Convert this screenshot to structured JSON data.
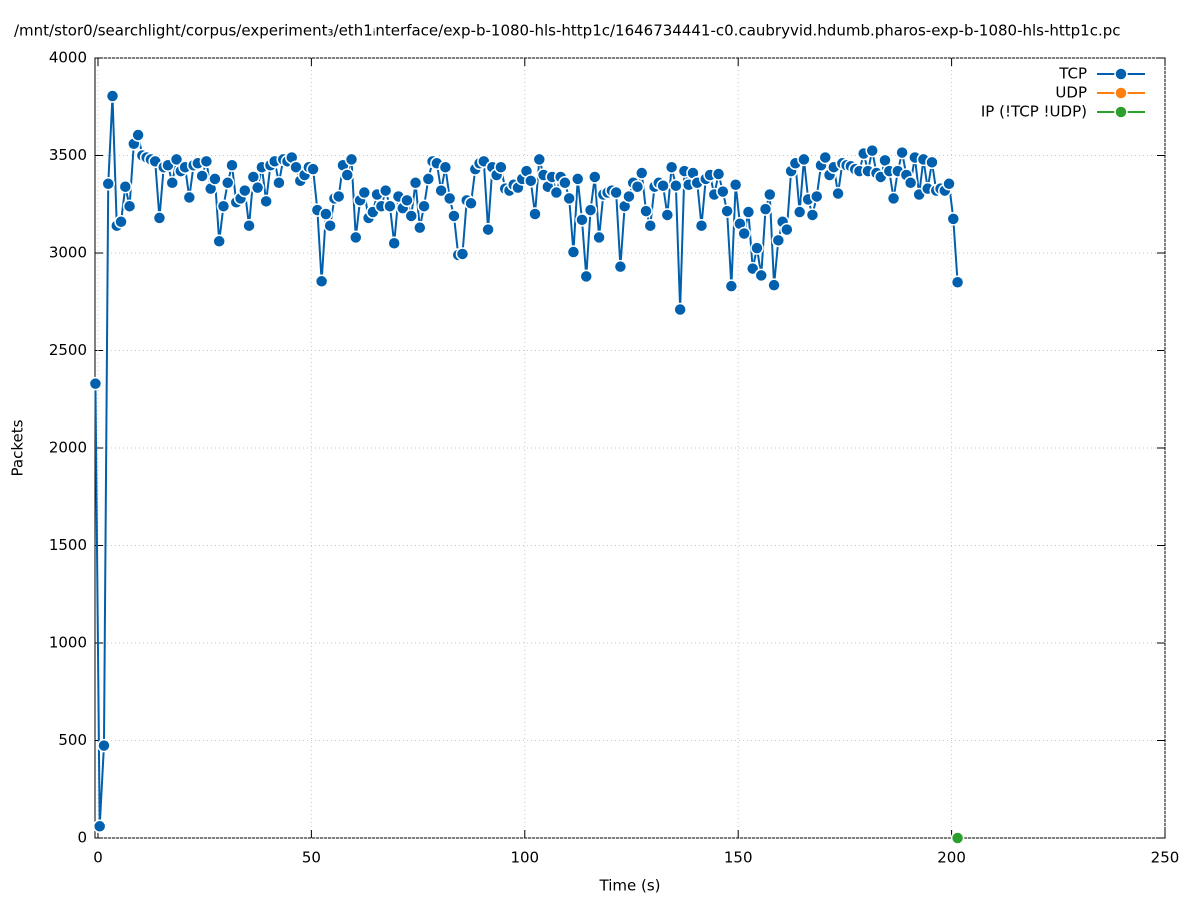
{
  "chart_data": {
    "type": "line",
    "title": "/mnt/stor0/searchlight/corpus/experiment₃/eth1ᵢnterface/exp-b-1080-hls-http1c/1646734441-c0.caubryvid.hdumb.pharos-exp-b-1080-hls-http1c.pc",
    "x_label": "Time (s)",
    "y_label": "Packets",
    "xlim": [
      -0.7,
      250
    ],
    "ylim": [
      0,
      4000
    ],
    "xticks": [
      0,
      50,
      100,
      150,
      200,
      250
    ],
    "yticks": [
      0,
      500,
      1000,
      1500,
      2000,
      2500,
      3000,
      3500,
      4000
    ],
    "grid": true,
    "legend": "top-right",
    "series": [
      {
        "name": "TCP",
        "color": "#0060ad",
        "x": [
          -0.6,
          0.4,
          1.4,
          2.4,
          3.4,
          4.4,
          5.4,
          6.4,
          7.4,
          8.4,
          9.4,
          10.4,
          11.4,
          12.4,
          13.4,
          14.4,
          15.4,
          16.4,
          17.4,
          18.4,
          19.4,
          20.4,
          21.4,
          22.4,
          23.4,
          24.4,
          25.4,
          26.4,
          27.4,
          28.4,
          29.4,
          30.4,
          31.4,
          32.4,
          33.4,
          34.4,
          35.4,
          36.4,
          37.4,
          38.4,
          39.4,
          40.4,
          41.4,
          42.4,
          43.4,
          44.4,
          45.4,
          46.4,
          47.4,
          48.4,
          49.4,
          50.4,
          51.4,
          52.4,
          53.4,
          54.4,
          55.4,
          56.4,
          57.4,
          58.4,
          59.4,
          60.4,
          61.4,
          62.4,
          63.4,
          64.4,
          65.4,
          66.4,
          67.4,
          68.4,
          69.4,
          70.4,
          71.4,
          72.4,
          73.4,
          74.4,
          75.4,
          76.4,
          77.4,
          78.4,
          79.4,
          80.4,
          81.4,
          82.4,
          83.4,
          84.4,
          85.4,
          86.4,
          87.4,
          88.4,
          89.4,
          90.4,
          91.4,
          92.4,
          93.4,
          94.4,
          95.4,
          96.4,
          97.4,
          98.4,
          99.4,
          100.4,
          101.4,
          102.4,
          103.4,
          104.4,
          105.4,
          106.4,
          107.4,
          108.4,
          109.4,
          110.4,
          111.4,
          112.4,
          113.4,
          114.4,
          115.4,
          116.4,
          117.4,
          118.4,
          119.4,
          120.4,
          121.4,
          122.4,
          123.4,
          124.4,
          125.4,
          126.4,
          127.4,
          128.4,
          129.4,
          130.4,
          131.4,
          132.4,
          133.4,
          134.4,
          135.4,
          136.4,
          137.4,
          138.4,
          139.4,
          140.4,
          141.4,
          142.4,
          143.4,
          144.4,
          145.4,
          146.4,
          147.4,
          148.4,
          149.4,
          150.4,
          151.4,
          152.4,
          153.4,
          154.4,
          155.4,
          156.4,
          157.4,
          158.4,
          159.4,
          160.4,
          161.4,
          162.4,
          163.4,
          164.4,
          165.4,
          166.4,
          167.4,
          168.4,
          169.4,
          170.4,
          171.4,
          172.4,
          173.4,
          174.4,
          175.4,
          176.4,
          177.4,
          178.4,
          179.4,
          180.4,
          181.4,
          182.4,
          183.4,
          184.4,
          185.4,
          186.4,
          187.4,
          188.4,
          189.4,
          190.4,
          191.4,
          192.4,
          193.4,
          194.4,
          195.4,
          196.4,
          197.4,
          198.4,
          199.4,
          200.4,
          201.4
        ],
        "values": [
          2330,
          60,
          474,
          3355,
          3805,
          3140,
          3160,
          3340,
          3240,
          3560,
          3605,
          3500,
          3490,
          3480,
          3470,
          3180,
          3440,
          3450,
          3360,
          3480,
          3420,
          3440,
          3285,
          3450,
          3460,
          3395,
          3470,
          3330,
          3380,
          3060,
          3240,
          3360,
          3450,
          3260,
          3280,
          3320,
          3140,
          3390,
          3335,
          3440,
          3265,
          3450,
          3470,
          3360,
          3480,
          3470,
          3490,
          3440,
          3370,
          3400,
          3440,
          3430,
          3220,
          2855,
          3200,
          3140,
          3280,
          3290,
          3450,
          3400,
          3480,
          3080,
          3270,
          3310,
          3180,
          3210,
          3300,
          3240,
          3320,
          3240,
          3050,
          3290,
          3230,
          3270,
          3190,
          3360,
          3130,
          3240,
          3380,
          3470,
          3460,
          3320,
          3440,
          3280,
          3190,
          2990,
          2995,
          3270,
          3255,
          3430,
          3460,
          3470,
          3120,
          3440,
          3400,
          3440,
          3330,
          3320,
          3350,
          3335,
          3380,
          3420,
          3370,
          3200,
          3480,
          3400,
          3340,
          3390,
          3310,
          3390,
          3360,
          3280,
          3005,
          3380,
          3170,
          2880,
          3220,
          3390,
          3080,
          3300,
          3310,
          3320,
          3310,
          2930,
          3240,
          3290,
          3360,
          3340,
          3410,
          3215,
          3140,
          3340,
          3360,
          3345,
          3195,
          3440,
          3345,
          2710,
          3420,
          3350,
          3410,
          3360,
          3140,
          3380,
          3400,
          3300,
          3405,
          3315,
          3215,
          2830,
          3350,
          3150,
          3100,
          3210,
          2920,
          3025,
          2885,
          3225,
          3300,
          2835,
          3065,
          3160,
          3120,
          3420,
          3460,
          3210,
          3480,
          3275,
          3195,
          3290,
          3450,
          3490,
          3400,
          3440,
          3305,
          3460,
          3450,
          3445,
          3430,
          3420,
          3510,
          3420,
          3525,
          3410,
          3390,
          3475,
          3420,
          3280,
          3420,
          3515,
          3400,
          3360,
          3490,
          3300,
          3480,
          3330,
          3465,
          3320,
          3330,
          3320,
          3355,
          3175,
          2850
        ]
      },
      {
        "name": "UDP",
        "color": "#ff7f0e",
        "x": [],
        "values": []
      },
      {
        "name": "IP (!TCP  !UDP)",
        "color": "#2ca02c",
        "x": [
          201.4
        ],
        "values": [
          0
        ]
      }
    ]
  }
}
